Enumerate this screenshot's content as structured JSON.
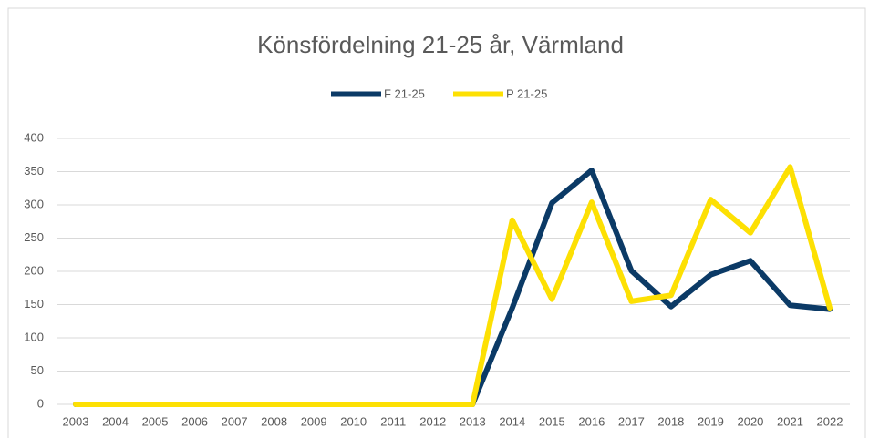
{
  "chart_data": {
    "type": "line",
    "title": "Könsfördelning 21-25 år, Värmland",
    "categories": [
      "2003",
      "2004",
      "2005",
      "2006",
      "2007",
      "2008",
      "2009",
      "2010",
      "2011",
      "2012",
      "2013",
      "2014",
      "2015",
      "2016",
      "2017",
      "2018",
      "2019",
      "2020",
      "2021",
      "2022"
    ],
    "series": [
      {
        "name": "F 21-25",
        "color": "#0b3a66",
        "values": [
          0,
          0,
          0,
          0,
          0,
          0,
          0,
          0,
          0,
          0,
          0,
          145,
          303,
          352,
          201,
          147,
          195,
          216,
          149,
          143
        ]
      },
      {
        "name": "P 21-25",
        "color": "#fde003",
        "values": [
          0,
          0,
          0,
          0,
          0,
          0,
          0,
          0,
          0,
          0,
          0,
          277,
          158,
          304,
          155,
          164,
          308,
          258,
          357,
          145
        ]
      }
    ],
    "ylim": [
      0,
      400
    ],
    "yticks": [
      0,
      50,
      100,
      150,
      200,
      250,
      300,
      350,
      400
    ],
    "grid": true,
    "legend": "top"
  }
}
